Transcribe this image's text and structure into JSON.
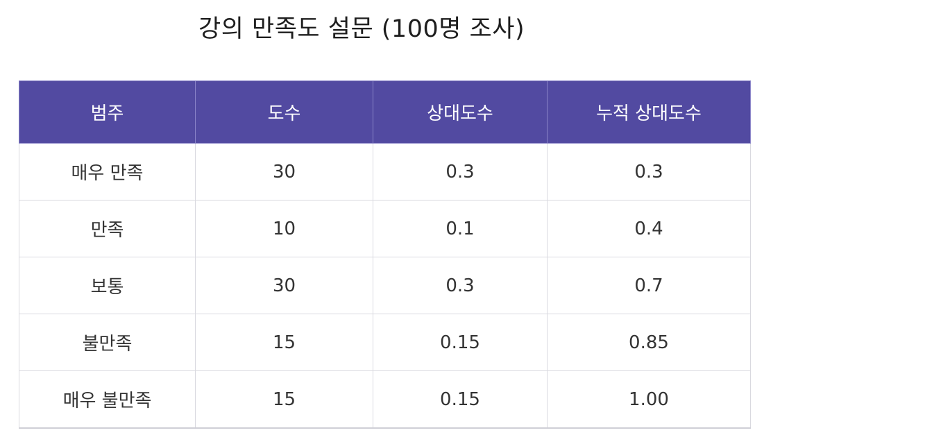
{
  "title": "강의 만족도 설문 (100명 조사)",
  "colors": {
    "header_bg": "#524aa1",
    "header_text": "#ffffff",
    "grid": "#d9d9df"
  },
  "table": {
    "headers": [
      "범주",
      "도수",
      "상대도수",
      "누적 상대도수"
    ],
    "rows": [
      [
        "매우 만족",
        "30",
        "0.3",
        "0.3"
      ],
      [
        "만족",
        "10",
        "0.1",
        "0.4"
      ],
      [
        "보통",
        "30",
        "0.3",
        "0.7"
      ],
      [
        "불만족",
        "15",
        "0.15",
        "0.85"
      ],
      [
        "매우 불만족",
        "15",
        "0.15",
        "1.00"
      ]
    ]
  }
}
